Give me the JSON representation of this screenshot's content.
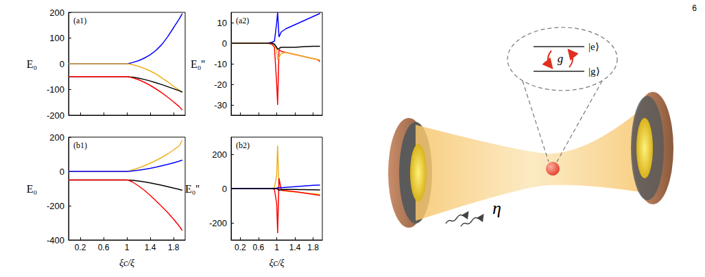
{
  "page_number": "6",
  "chart_data": [
    {
      "type": "line",
      "title": "(a1)",
      "y_label": "E₀",
      "tick_labels": "y",
      "x": [
        0,
        0.2,
        0.4,
        0.6,
        0.8,
        0.9,
        0.95,
        1,
        1.02,
        1.05,
        1.1,
        1.2,
        1.3,
        1.4,
        1.5,
        1.6,
        1.7,
        1.8,
        1.9,
        1.95
      ],
      "xlim": [
        0,
        2
      ],
      "xticks": [
        0.2,
        0.6,
        1,
        1.4,
        1.8
      ],
      "ylim": [
        -200,
        200
      ],
      "yticks": [
        -200,
        -100,
        0,
        100,
        200
      ],
      "series": [
        {
          "color": "#0000ff",
          "values": [
            0,
            0,
            0,
            0,
            0,
            0,
            0,
            0,
            0.5,
            2,
            5,
            12,
            22,
            35,
            52,
            75,
            105,
            140,
            175,
            195
          ]
        },
        {
          "color": "#edb120",
          "values": [
            0,
            0,
            0,
            0,
            0,
            0,
            0,
            0,
            -0.5,
            -2,
            -4,
            -10,
            -18,
            -28,
            -40,
            -55,
            -70,
            -87,
            -103,
            -112
          ]
        },
        {
          "color": "#000000",
          "values": [
            -50,
            -50,
            -50,
            -50,
            -50,
            -50,
            -50,
            -50,
            -50,
            -51,
            -52,
            -56,
            -61,
            -67,
            -74,
            -81,
            -89,
            -97,
            -105,
            -110
          ]
        },
        {
          "color": "#ff0000",
          "values": [
            -50,
            -50,
            -50,
            -50,
            -50,
            -50,
            -50,
            -50,
            -50.5,
            -52,
            -55,
            -62,
            -72,
            -84,
            -98,
            -113,
            -130,
            -148,
            -167,
            -180
          ]
        }
      ]
    },
    {
      "type": "line",
      "title": "(a2)",
      "y_label": "E₀''",
      "tick_labels": "y",
      "x": [
        0,
        0.2,
        0.4,
        0.6,
        0.8,
        0.9,
        0.95,
        1,
        1.02,
        1.05,
        1.1,
        1.2,
        1.3,
        1.4,
        1.5,
        1.6,
        1.7,
        1.8,
        1.9,
        1.95
      ],
      "xlim": [
        0,
        2
      ],
      "xticks": [
        0.2,
        0.6,
        1,
        1.4,
        1.8
      ],
      "ylim": [
        -35,
        15
      ],
      "yticks": [
        -30,
        -20,
        -10,
        0,
        10
      ],
      "series": [
        {
          "color": "#0000ff",
          "values": [
            0,
            0,
            0,
            0,
            0,
            0.5,
            1,
            10,
            15,
            3,
            5.5,
            7,
            8,
            9,
            10,
            11,
            12,
            13,
            14,
            14.5
          ]
        },
        {
          "color": "#ff0000",
          "values": [
            0,
            0,
            0,
            0,
            0,
            -0.5,
            -2,
            -20,
            -30,
            -3,
            -4,
            -4.5,
            -5,
            -5.5,
            -6,
            -6.5,
            -7,
            -7.5,
            -8,
            -9
          ]
        },
        {
          "color": "#edb120",
          "values": [
            0,
            0,
            0,
            0,
            0,
            0,
            -0.5,
            -3,
            -8,
            -7,
            -5,
            -4.5,
            -5,
            -5.5,
            -6,
            -6.5,
            -7,
            -7.5,
            -8,
            -8
          ]
        },
        {
          "color": "#000000",
          "values": [
            0,
            0,
            0,
            0,
            0,
            0,
            -0.5,
            -2,
            -3,
            -2.5,
            -2,
            -2,
            -2,
            -2,
            -1.8,
            -1.7,
            -1.6,
            -1.5,
            -1.5,
            -1.5
          ]
        }
      ]
    },
    {
      "type": "line",
      "title": "(b1)",
      "y_label": "E₀",
      "x_label": "ξc/ξ",
      "x": [
        0,
        0.2,
        0.4,
        0.6,
        0.8,
        0.9,
        0.95,
        1,
        1.02,
        1.05,
        1.1,
        1.2,
        1.3,
        1.4,
        1.5,
        1.6,
        1.7,
        1.8,
        1.9,
        1.95
      ],
      "xlim": [
        0,
        2
      ],
      "xticks": [
        0.2,
        0.6,
        1,
        1.4,
        1.8
      ],
      "ylim": [
        -400,
        200
      ],
      "yticks": [
        -400,
        -200,
        0,
        200
      ],
      "series": [
        {
          "color": "#edb120",
          "values": [
            0,
            0,
            0,
            0,
            0,
            0,
            0,
            0,
            1,
            4,
            9,
            20,
            33,
            48,
            64,
            82,
            102,
            125,
            150,
            182
          ]
        },
        {
          "color": "#0000ff",
          "values": [
            0,
            0,
            0,
            0,
            0,
            0,
            0,
            0,
            0.3,
            1,
            3,
            7,
            12,
            18,
            25,
            33,
            41,
            50,
            60,
            66
          ]
        },
        {
          "color": "#000000",
          "values": [
            -50,
            -50,
            -50,
            -50,
            -50,
            -50,
            -50,
            -50,
            -50.5,
            -51,
            -52,
            -56,
            -61,
            -67,
            -74,
            -81,
            -89,
            -97,
            -105,
            -110
          ]
        },
        {
          "color": "#ff0000",
          "values": [
            -50,
            -50,
            -50,
            -50,
            -50,
            -50,
            -50,
            -50,
            -51,
            -55,
            -62,
            -85,
            -110,
            -140,
            -172,
            -205,
            -240,
            -278,
            -320,
            -345
          ]
        }
      ]
    },
    {
      "type": "line",
      "title": "(b2)",
      "y_label": "E₀''",
      "x_label": "ξc/ξ",
      "x": [
        0,
        0.2,
        0.4,
        0.6,
        0.8,
        0.9,
        0.95,
        1,
        1.02,
        1.05,
        1.1,
        1.2,
        1.3,
        1.4,
        1.5,
        1.6,
        1.7,
        1.8,
        1.9,
        1.95
      ],
      "xlim": [
        0,
        2
      ],
      "xticks": [
        0.2,
        0.6,
        1,
        1.4,
        1.8
      ],
      "ylim": [
        -300,
        300
      ],
      "yticks": [
        -200,
        0,
        200
      ],
      "series": [
        {
          "color": "#edb120",
          "values": [
            0,
            0,
            0,
            0,
            0,
            0,
            5,
            80,
            250,
            -5,
            -10,
            -15,
            -18,
            -20,
            -22,
            -25,
            -28,
            -30,
            -33,
            -35
          ]
        },
        {
          "color": "#ff0000",
          "values": [
            0,
            0,
            0,
            0,
            0,
            0,
            -5,
            -90,
            -260,
            60,
            -10,
            -12,
            -15,
            -18,
            -22,
            -26,
            -30,
            -34,
            -38,
            -40
          ]
        },
        {
          "color": "#0000ff",
          "values": [
            0,
            0,
            0,
            0,
            0,
            0,
            0,
            2,
            5,
            3,
            5,
            7,
            9,
            11,
            13,
            15,
            17,
            19,
            20,
            20
          ]
        },
        {
          "color": "#000000",
          "values": [
            0,
            0,
            0,
            0,
            0,
            0,
            0,
            -1,
            -3,
            -10,
            -6,
            -5,
            -5,
            -5,
            -6,
            -6,
            -7,
            -7,
            -8,
            -8
          ]
        }
      ]
    }
  ],
  "diagram": {
    "upper_level": "|e⟩",
    "lower_level": "|g⟩",
    "coupling": "g",
    "pump": "η"
  }
}
